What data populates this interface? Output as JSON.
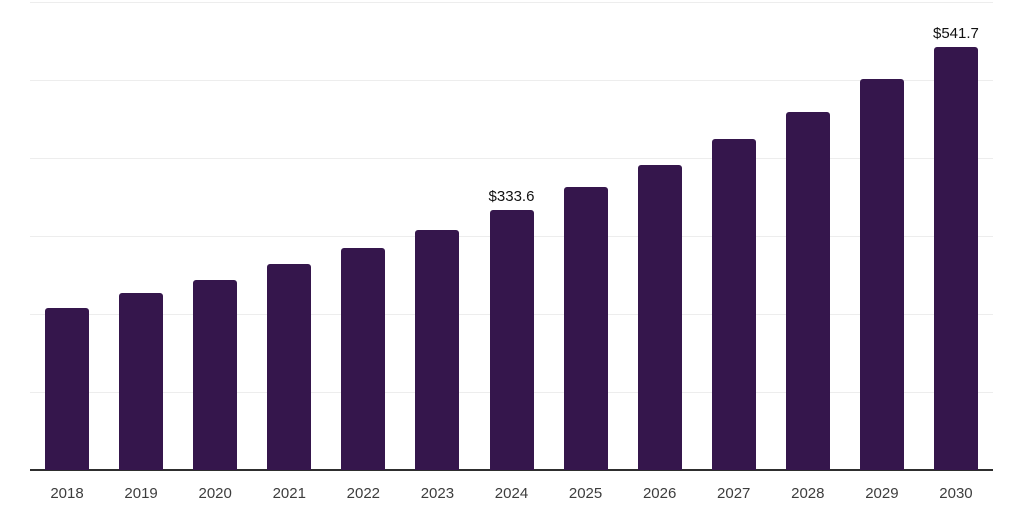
{
  "chart_data": {
    "type": "bar",
    "title": "",
    "xlabel": "",
    "ylabel": "",
    "categories": [
      "2018",
      "2019",
      "2020",
      "2021",
      "2022",
      "2023",
      "2024",
      "2025",
      "2026",
      "2027",
      "2028",
      "2029",
      "2030"
    ],
    "values": [
      207.7,
      226.9,
      244.0,
      263.6,
      284.1,
      308.0,
      333.6,
      362.5,
      391.6,
      424.5,
      459.4,
      501.2,
      541.7
    ],
    "data_labels": [
      {
        "category": "2024",
        "text": "$333.6"
      },
      {
        "category": "2030",
        "text": "$541.7"
      }
    ],
    "ylim": [
      0,
      600
    ],
    "grid_step": 100,
    "grid": "horizontal-only",
    "legend_position": "none",
    "y_tick_labels_visible": false,
    "colors": {
      "bar": "#35164c",
      "axis_line": "#2e2e2e",
      "gridline": "#ededed",
      "tick_label": "#3d3d3d",
      "data_label": "#111111",
      "background": "#ffffff"
    }
  }
}
